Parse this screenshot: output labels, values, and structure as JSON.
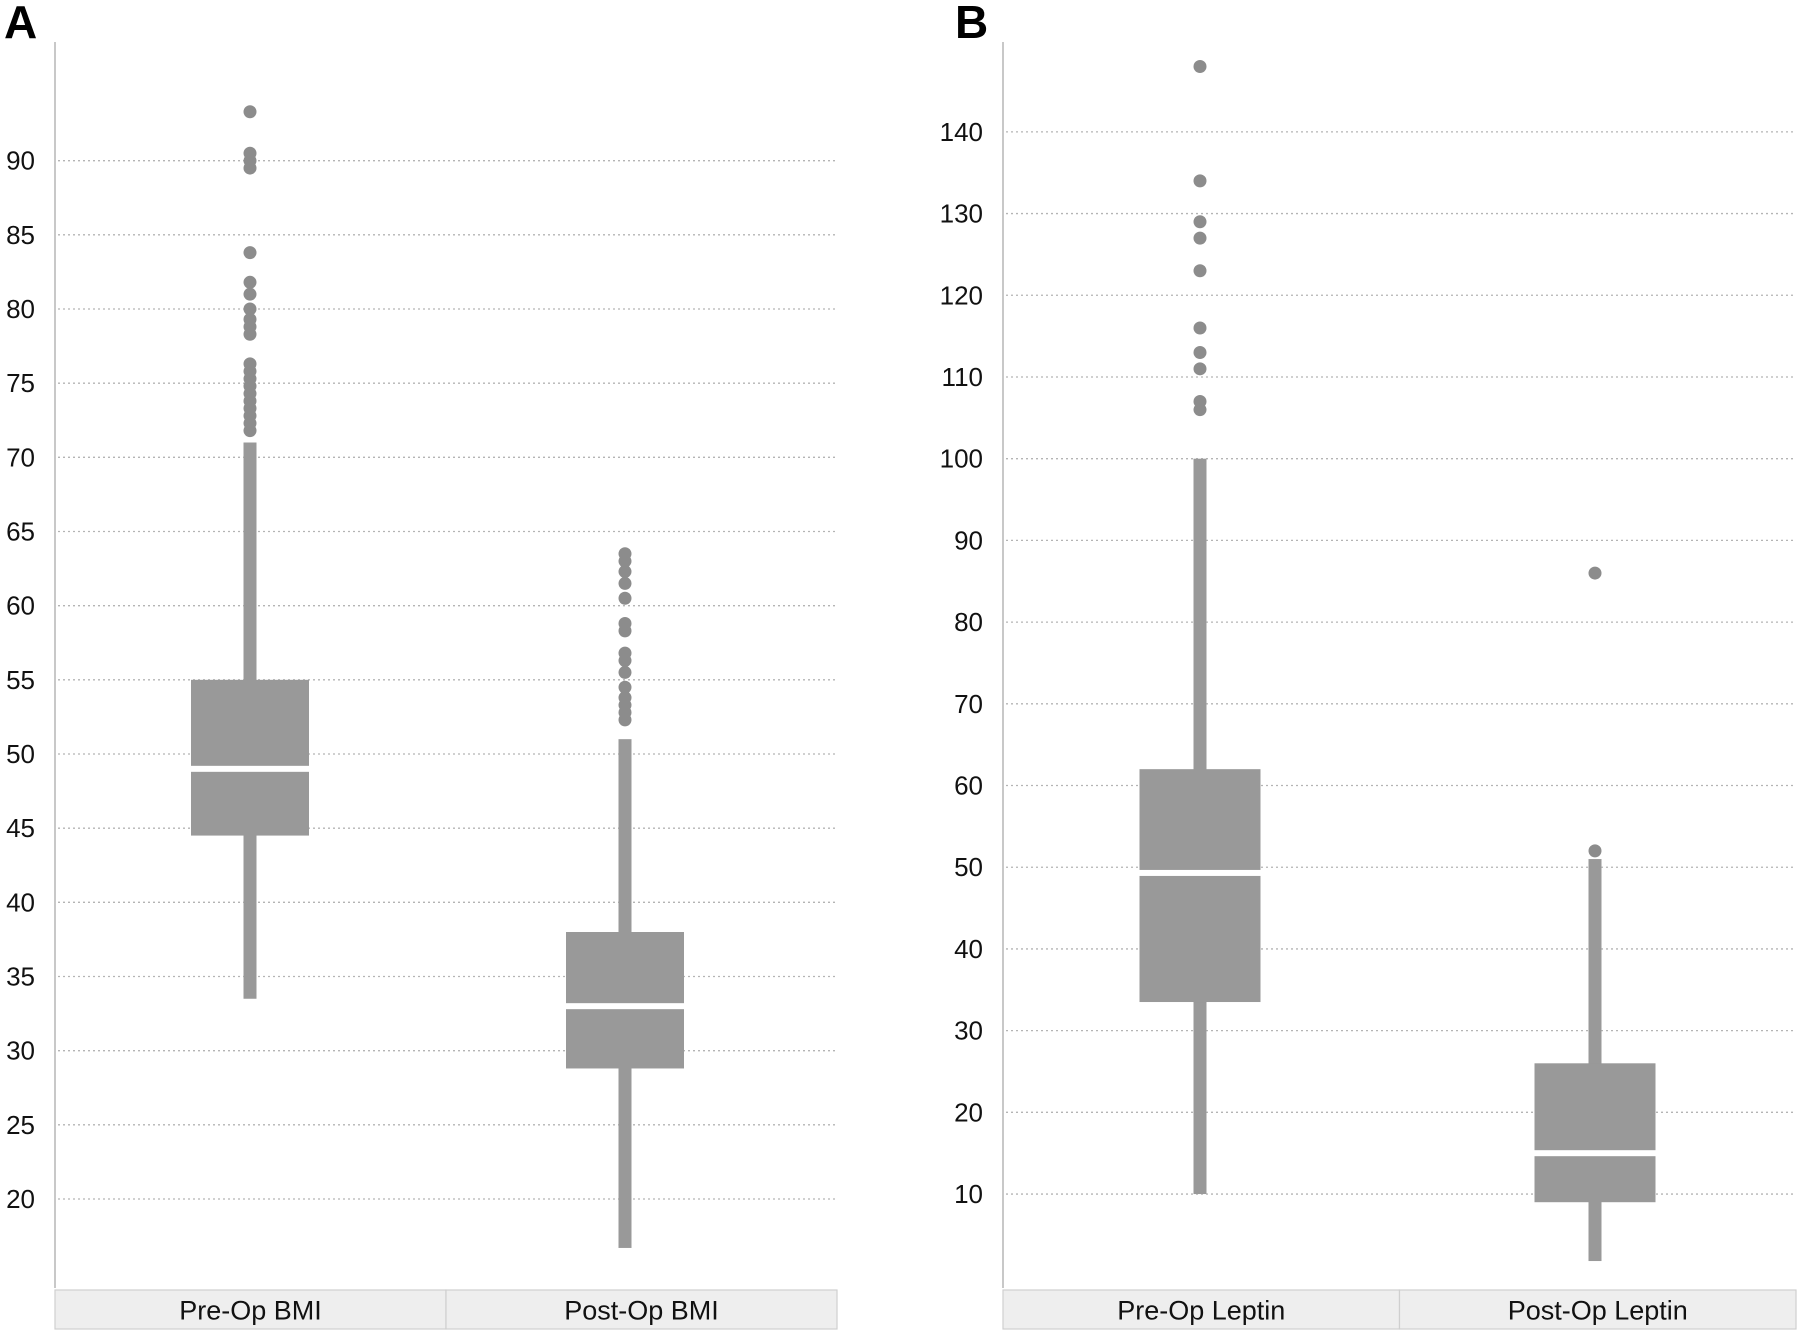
{
  "colors": {
    "box": "#999999",
    "outlier": "#8c8c8c",
    "median": "#ffffff",
    "grid": "#b4b4b4",
    "axis": "#c8c8c8",
    "category_band": "#eeeeee",
    "category_band_border": "#cfcfcf"
  },
  "chart_data": [
    {
      "type": "box",
      "panel_label": "A",
      "title": "",
      "xlabel": "",
      "ylabel": "",
      "ylim": [
        14,
        98
      ],
      "yticks": [
        20,
        25,
        30,
        35,
        40,
        45,
        50,
        55,
        60,
        65,
        70,
        75,
        80,
        85,
        90
      ],
      "grid": "horizontal dotted",
      "categories": [
        "Pre-Op BMI",
        "Post-Op BMI"
      ],
      "boxes": [
        {
          "category": "Pre-Op BMI",
          "whisker_low": 33.5,
          "q1": 44.5,
          "median": 49.0,
          "q3": 55.0,
          "whisker_high": 71.0,
          "outliers": [
            71.8,
            72.3,
            72.8,
            73.3,
            73.8,
            74.3,
            74.8,
            75.3,
            75.8,
            76.3,
            78.3,
            78.8,
            79.3,
            80.0,
            81.0,
            81.8,
            83.8,
            89.5,
            90.0,
            90.5,
            93.3
          ]
        },
        {
          "category": "Post-Op BMI",
          "whisker_low": 16.7,
          "q1": 28.8,
          "median": 33.0,
          "q3": 38.0,
          "whisker_high": 51.0,
          "outliers": [
            52.3,
            52.8,
            53.3,
            53.8,
            54.5,
            55.5,
            56.3,
            56.8,
            58.3,
            58.8,
            60.5,
            61.5,
            62.3,
            63.0,
            63.5
          ]
        }
      ]
    },
    {
      "type": "box",
      "panel_label": "B",
      "title": "",
      "xlabel": "",
      "ylabel": "",
      "ylim": [
        -1.5,
        151
      ],
      "yticks": [
        10,
        20,
        30,
        40,
        50,
        60,
        70,
        80,
        90,
        100,
        110,
        120,
        130,
        140
      ],
      "grid": "horizontal dotted",
      "categories": [
        "Pre-Op Leptin",
        "Post-Op Leptin"
      ],
      "boxes": [
        {
          "category": "Pre-Op Leptin",
          "whisker_low": 10.0,
          "q1": 33.5,
          "median": 49.3,
          "q3": 62.0,
          "whisker_high": 100.0,
          "outliers": [
            106.0,
            107.0,
            111.0,
            113.0,
            116.0,
            123.0,
            127.0,
            129.0,
            134.0,
            148.0
          ]
        },
        {
          "category": "Post-Op Leptin",
          "whisker_low": 1.8,
          "q1": 9.0,
          "median": 15.0,
          "q3": 26.0,
          "whisker_high": 51.0,
          "outliers": [
            52.0,
            86.0
          ]
        }
      ]
    }
  ]
}
